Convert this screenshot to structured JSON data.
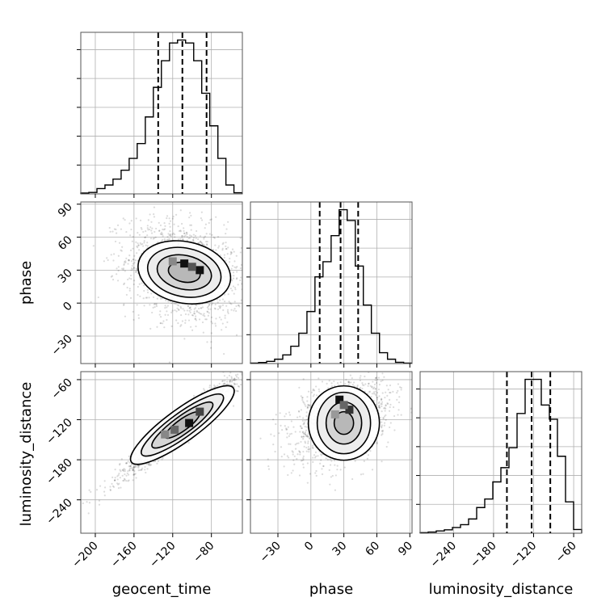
{
  "chart_data": {
    "type": "corner",
    "parameters": [
      "geocent_time",
      "phase",
      "luminosity_distance"
    ],
    "axis_labels": {
      "geocent_time": "geocent_time",
      "phase": "phase",
      "luminosity_distance": "luminosity_distance"
    },
    "ranges": {
      "geocent_time": [
        -215,
        -48
      ],
      "phase": [
        -55,
        92
      ],
      "luminosity_distance": [
        -290,
        -48
      ]
    },
    "ticks": {
      "geocent_time": [
        "−200",
        "−160",
        "−120",
        "−80"
      ],
      "phase": [
        "−30",
        "0",
        "30",
        "60",
        "90"
      ],
      "luminosity_distance": [
        "−240",
        "−180",
        "−120",
        "−60"
      ]
    },
    "grid": true,
    "quantiles": {
      "geocent_time": [
        -135,
        -110,
        -85
      ],
      "phase": [
        8,
        27,
        43
      ],
      "luminosity_distance": [
        -160,
        -123,
        -95
      ]
    },
    "histograms": {
      "geocent_time": {
        "edges": [
          -215,
          -206.7,
          -198.3,
          -190,
          -181.7,
          -173.3,
          -165,
          -156.7,
          -148.3,
          -140,
          -131.7,
          -123.3,
          -115,
          -106.7,
          -98.3,
          -90,
          -81.7,
          -73.3,
          -65,
          -56.7,
          -48.3
        ],
        "counts": [
          0.3,
          0.5,
          1.8,
          3,
          5,
          8,
          12,
          17,
          26,
          36,
          45,
          51,
          52,
          51,
          45,
          34,
          23,
          12,
          3,
          0.4
        ]
      },
      "phase": {
        "edges": [
          -55,
          -47.6,
          -40.3,
          -33,
          -25.6,
          -18.3,
          -11,
          -3.6,
          3.7,
          11,
          18.4,
          25.7,
          33,
          40.4,
          47.7,
          55,
          62.4,
          69.7,
          77,
          84.4,
          91.7
        ],
        "counts": [
          0.2,
          0.5,
          1,
          2,
          4,
          8,
          14,
          24,
          40,
          47,
          59,
          71,
          66,
          45,
          27,
          14,
          5,
          2,
          0.6,
          0.2
        ]
      },
      "luminosity_distance": {
        "edges": [
          -290,
          -277.9,
          -265.8,
          -253.7,
          -241.6,
          -229.5,
          -217.4,
          -205.3,
          -193.2,
          -181.1,
          -169,
          -156.9,
          -144.8,
          -132.7,
          -120.6,
          -108.5,
          -96.4,
          -84.3,
          -72.2,
          -60.1,
          -48
        ],
        "counts": [
          0.2,
          0.4,
          0.8,
          1.2,
          2,
          3,
          5,
          9,
          12,
          18,
          23,
          30,
          42,
          54,
          54,
          45,
          40,
          27,
          11,
          1.3
        ]
      }
    },
    "contour_levels": [
      0.5,
      1.0,
      1.5,
      2.0
    ]
  }
}
